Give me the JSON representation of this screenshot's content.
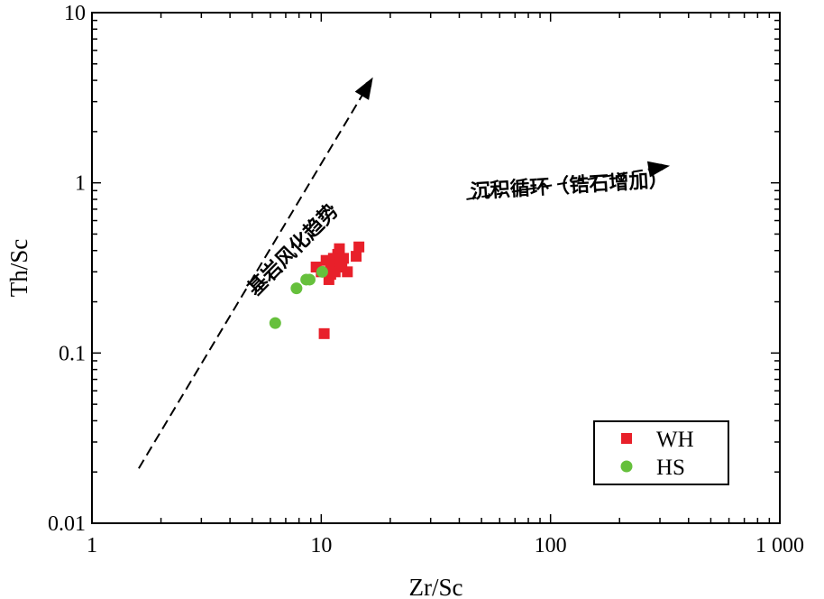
{
  "chart_data": {
    "type": "scatter",
    "title": "",
    "xlabel": "Zr/Sc",
    "ylabel": "Th/Sc",
    "xscale": "log",
    "yscale": "log",
    "xlim": [
      1,
      1000
    ],
    "ylim": [
      0.01,
      10
    ],
    "x_tick_labels": [
      "1",
      "10",
      "100",
      "1 000"
    ],
    "y_tick_labels": [
      "0.01",
      "0.1",
      "1",
      "10"
    ],
    "legend_position": "bottom-right",
    "series": [
      {
        "name": "WH",
        "marker": "square",
        "color": "#e8202a",
        "points": [
          [
            9.5,
            0.32
          ],
          [
            10.0,
            0.3
          ],
          [
            10.5,
            0.35
          ],
          [
            10.8,
            0.27
          ],
          [
            11.0,
            0.33
          ],
          [
            11.3,
            0.36
          ],
          [
            11.5,
            0.3
          ],
          [
            11.8,
            0.38
          ],
          [
            12.0,
            0.41
          ],
          [
            12.3,
            0.32
          ],
          [
            12.5,
            0.36
          ],
          [
            13.0,
            0.3
          ],
          [
            14.2,
            0.37
          ],
          [
            14.6,
            0.42
          ],
          [
            12.0,
            0.34
          ],
          [
            11.0,
            0.29
          ],
          [
            10.3,
            0.13
          ]
        ]
      },
      {
        "name": "HS",
        "marker": "circle",
        "color": "#66c03c",
        "points": [
          [
            6.3,
            0.15
          ],
          [
            7.8,
            0.24
          ],
          [
            8.6,
            0.27
          ],
          [
            8.9,
            0.27
          ],
          [
            10.1,
            0.3
          ]
        ]
      }
    ],
    "annotations": [
      {
        "text": "基岩风化趋势",
        "from": [
          1.6,
          0.021
        ],
        "to": [
          16.5,
          4.0
        ]
      },
      {
        "text": "沉积循环（锆石增加）",
        "from": [
          43,
          0.8
        ],
        "to": [
          320,
          1.25
        ]
      }
    ]
  }
}
